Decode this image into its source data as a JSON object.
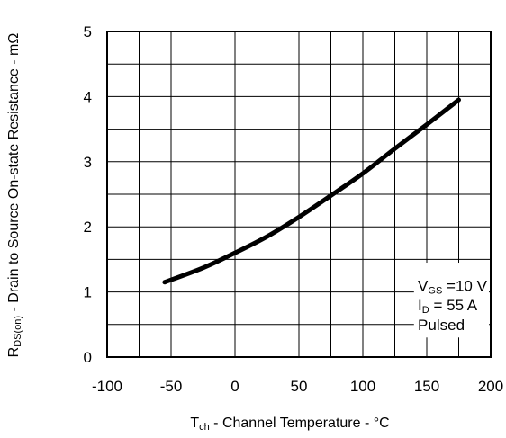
{
  "chart_data": {
    "type": "line",
    "xlabel": {
      "main": "T",
      "sub": "ch",
      "rest": " - Channel Temperature - °C"
    },
    "ylabel": {
      "main": "R",
      "sub": "DS(on)",
      "rest": " - Drain to Source On-state Resistance - mΩ"
    },
    "xlim": [
      -100,
      200
    ],
    "ylim": [
      0,
      5
    ],
    "grid": true,
    "x_ticks": [
      -100,
      -50,
      0,
      50,
      100,
      150,
      200
    ],
    "y_ticks": [
      0,
      1,
      2,
      3,
      4,
      5
    ],
    "x_tick_labels": [
      "-100",
      "-50",
      "0",
      "50",
      "100",
      "150",
      "200"
    ],
    "y_tick_labels": [
      "0",
      "1",
      "2",
      "3",
      "4",
      "5"
    ],
    "series": [
      {
        "x": [
          -55,
          -25,
          0,
          25,
          50,
          75,
          100,
          125,
          150,
          175
        ],
        "y": [
          1.15,
          1.37,
          1.6,
          1.85,
          2.15,
          2.48,
          2.82,
          3.2,
          3.57,
          3.95
        ]
      }
    ],
    "annotation": {
      "line1": {
        "main": "V",
        "sub": "GS",
        "rest": " =10 V"
      },
      "line2": {
        "main": "I",
        "sub": "D",
        "rest": " = 55 A"
      },
      "line3": "Pulsed"
    }
  }
}
